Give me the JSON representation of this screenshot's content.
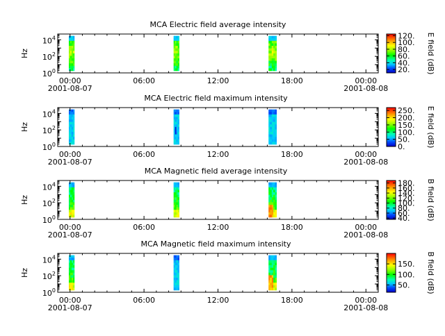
{
  "chart_data": [
    {
      "type": "heatmap",
      "title": "MCA  Electric field average intensity",
      "ylabel": "Hz",
      "y_scale": "log",
      "ylim": [
        1,
        50000
      ],
      "y_ticks": [
        {
          "base": "10",
          "exp": "0"
        },
        {
          "base": "10",
          "exp": "2"
        },
        {
          "base": "10",
          "exp": "4"
        }
      ],
      "x_ticks": [
        "00:00",
        "06:00",
        "12:00",
        "18:00",
        "00:00"
      ],
      "x_dates": [
        "2001-08-07",
        "2001-08-08"
      ],
      "xlim_hours": [
        -1,
        25
      ],
      "colorbar": {
        "label": "E field (dB)",
        "range": [
          10,
          125
        ],
        "ticks": [
          "120.",
          "100.",
          "80.",
          "60.",
          "40.",
          "20."
        ],
        "tick_values": [
          120,
          100,
          80,
          60,
          40,
          20
        ]
      },
      "segments": [
        {
          "start_hour": -0.1,
          "end_hour": 0.35,
          "pattern": "avg"
        },
        {
          "start_hour": 8.4,
          "end_hour": 8.85,
          "pattern": "avg"
        },
        {
          "start_hour": 16.1,
          "end_hour": 16.75,
          "pattern": "avg"
        }
      ]
    },
    {
      "type": "heatmap",
      "title": "MCA  Electric field maximum intensity",
      "ylabel": "Hz",
      "y_scale": "log",
      "ylim": [
        1,
        50000
      ],
      "y_ticks": [
        {
          "base": "10",
          "exp": "0"
        },
        {
          "base": "10",
          "exp": "2"
        },
        {
          "base": "10",
          "exp": "4"
        }
      ],
      "x_ticks": [
        "00:00",
        "06:00",
        "12:00",
        "18:00",
        "00:00"
      ],
      "x_dates": [
        "2001-08-07",
        "2001-08-08"
      ],
      "xlim_hours": [
        -1,
        25
      ],
      "colorbar": {
        "label": "E field (dB)",
        "range": [
          0,
          270
        ],
        "ticks": [
          "250.",
          "200.",
          "150.",
          "100.",
          "50.",
          "0."
        ],
        "tick_values": [
          250,
          200,
          150,
          100,
          50,
          0
        ]
      },
      "segments": [
        {
          "start_hour": -0.1,
          "end_hour": 0.35,
          "pattern": "max"
        },
        {
          "start_hour": 8.4,
          "end_hour": 8.85,
          "pattern": "max"
        },
        {
          "start_hour": 16.1,
          "end_hour": 16.75,
          "pattern": "max"
        }
      ]
    },
    {
      "type": "heatmap",
      "title": "MCA  Magnetic field average intensity",
      "ylabel": "Hz",
      "y_scale": "log",
      "ylim": [
        1,
        50000
      ],
      "y_ticks": [
        {
          "base": "10",
          "exp": "0"
        },
        {
          "base": "10",
          "exp": "2"
        },
        {
          "base": "10",
          "exp": "4"
        }
      ],
      "x_ticks": [
        "00:00",
        "06:00",
        "12:00",
        "18:00",
        "00:00"
      ],
      "x_dates": [
        "2001-08-07",
        "2001-08-08"
      ],
      "xlim_hours": [
        -1,
        25
      ],
      "colorbar": {
        "label": "B field (dB)",
        "range": [
          35,
          190
        ],
        "ticks": [
          "180.",
          "160.",
          "140.",
          "120.",
          "100.",
          "80.",
          "60.",
          "40."
        ],
        "tick_values": [
          180,
          160,
          140,
          120,
          100,
          80,
          60,
          40
        ]
      },
      "segments": [
        {
          "start_hour": -0.1,
          "end_hour": 0.35,
          "pattern": "mag"
        },
        {
          "start_hour": 8.4,
          "end_hour": 8.85,
          "pattern": "mag"
        },
        {
          "start_hour": 16.1,
          "end_hour": 16.75,
          "pattern": "mag"
        }
      ]
    },
    {
      "type": "heatmap",
      "title": "MCA  Magnetic field maximum intensity",
      "ylabel": "Hz",
      "y_scale": "log",
      "ylim": [
        1,
        50000
      ],
      "y_ticks": [
        {
          "base": "10",
          "exp": "0"
        },
        {
          "base": "10",
          "exp": "2"
        },
        {
          "base": "10",
          "exp": "4"
        }
      ],
      "x_ticks": [
        "00:00",
        "06:00",
        "12:00",
        "18:00",
        "00:00"
      ],
      "x_dates": [
        "2001-08-07",
        "2001-08-08"
      ],
      "xlim_hours": [
        -1,
        25
      ],
      "colorbar": {
        "label": "B field (dB)",
        "range": [
          15,
          200
        ],
        "ticks": [
          "150.",
          "100.",
          "50."
        ],
        "tick_values": [
          150,
          100,
          50
        ]
      },
      "segments": [
        {
          "start_hour": -0.1,
          "end_hour": 0.35,
          "pattern": "mag"
        },
        {
          "start_hour": 8.4,
          "end_hour": 8.85,
          "pattern": "max"
        },
        {
          "start_hour": 16.1,
          "end_hour": 16.75,
          "pattern": "mag"
        }
      ]
    }
  ]
}
